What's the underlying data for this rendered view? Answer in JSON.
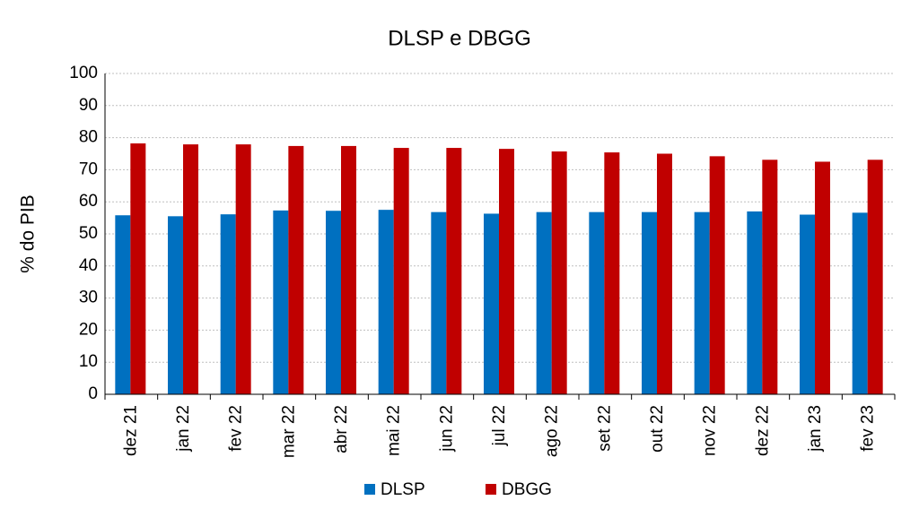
{
  "chart_data": {
    "type": "bar",
    "title": "DLSP e DBGG",
    "y_label": "% do PIB",
    "categories": [
      "dez 21",
      "jan 22",
      "fev 22",
      "mar 22",
      "abr 22",
      "mai 22",
      "jun 22",
      "jul 22",
      "ago 22",
      "set 22",
      "out 22",
      "nov 22",
      "dez 22",
      "jan 23",
      "fev 23"
    ],
    "series": [
      {
        "name": "DLSP",
        "color": "#0070c0",
        "values": [
          55.8,
          55.5,
          56.1,
          57.3,
          57.2,
          57.5,
          56.8,
          56.3,
          56.8,
          56.8,
          56.8,
          56.8,
          57.0,
          56.0,
          56.6
        ]
      },
      {
        "name": "DBGG",
        "color": "#c00000",
        "values": [
          78.2,
          77.9,
          77.9,
          77.4,
          77.4,
          76.8,
          76.8,
          76.5,
          75.7,
          75.4,
          75.0,
          74.2,
          73.1,
          72.5,
          73.1
        ]
      }
    ],
    "ylim": [
      0,
      100
    ],
    "yticks": [
      0,
      10,
      20,
      30,
      40,
      50,
      60,
      70,
      80,
      90,
      100
    ],
    "grid": true,
    "legend": "bottom"
  }
}
